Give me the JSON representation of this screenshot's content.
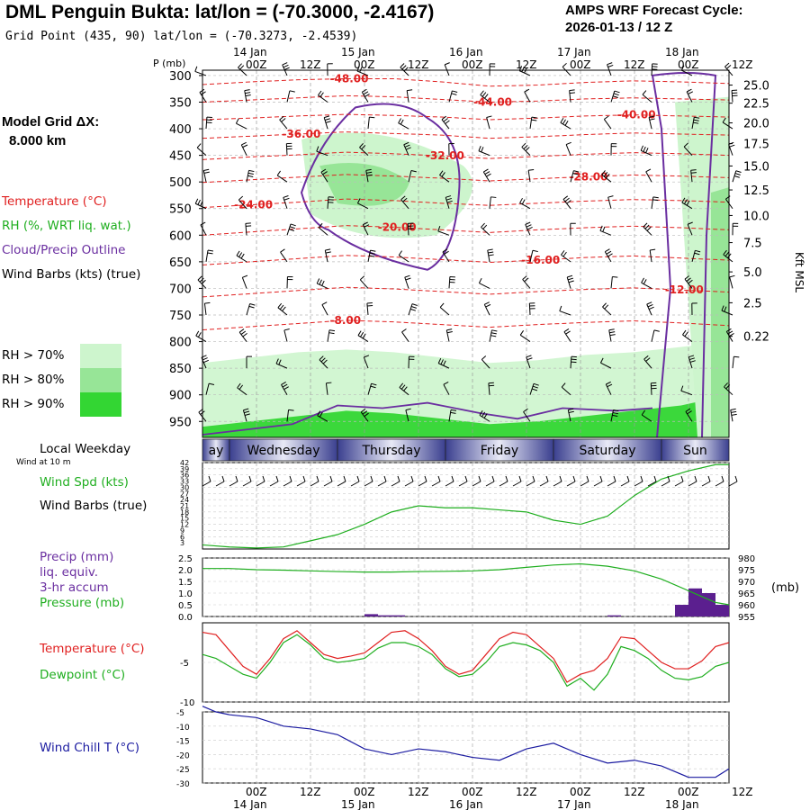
{
  "header": {
    "title": "DML Penguin Bukta:  lat/lon = (-70.3000, -2.4167)",
    "grid_point": "Grid Point (435, 90) lat/lon = (-70.3273, -2.4539)",
    "cycle_label": "AMPS WRF Forecast Cycle:",
    "cycle_value": "2026-01-13 / 12  Z"
  },
  "sidebar": {
    "model_grid_label": "Model Grid ΔX:",
    "model_grid_value": "8.000 km",
    "legend_temperature": "Temperature (°C)",
    "legend_rh": "RH (%, WRT liq. wat.)",
    "legend_cloud": "Cloud/Precip Outline",
    "legend_wind": "Wind Barbs (kts) (true)",
    "rh_levels": [
      {
        "label": "RH > 70%",
        "color": "#cdf5cd"
      },
      {
        "label": "RH > 80%",
        "color": "#97e597"
      },
      {
        "label": "RH > 90%",
        "color": "#33d633"
      }
    ],
    "local_weekday_label": "Local Weekday",
    "wind_10m_label": "Wind at 10 m",
    "wind_spd_label": "Wind Spd (kts)",
    "wind_barbs_label": "Wind Barbs (true)",
    "precip_label": "Precip (mm)",
    "liq_label": "liq. equiv.",
    "accum_label": "3-hr accum",
    "pressure_label": "Pressure (mb)",
    "temp_label": "Temperature (°C)",
    "dew_label": "Dewpoint (°C)",
    "chill_label": "Wind Chill T (°C)"
  },
  "colors": {
    "temperature": "#e02020",
    "rh": "#1fae1f",
    "cloud": "#6a2ea0",
    "pressure": "#1fae1f",
    "windchill": "#1a1aa0",
    "precip": "#5b1f8f"
  },
  "chart_data": [
    {
      "name": "time-height cross section",
      "type": "heatmap",
      "time_axis": {
        "units": "hours since 2026-01-13 12Z",
        "range": [
          0,
          117
        ],
        "ticks": [
          {
            "h": 12,
            "label": "00Z",
            "date": "14 Jan"
          },
          {
            "h": 24,
            "label": "12Z",
            "date": ""
          },
          {
            "h": 36,
            "label": "00Z",
            "date": "15 Jan"
          },
          {
            "h": 48,
            "label": "12Z",
            "date": ""
          },
          {
            "h": 60,
            "label": "00Z",
            "date": "16 Jan"
          },
          {
            "h": 72,
            "label": "12Z",
            "date": ""
          },
          {
            "h": 84,
            "label": "00Z",
            "date": "17 Jan"
          },
          {
            "h": 96,
            "label": "12Z",
            "date": ""
          },
          {
            "h": 108,
            "label": "00Z",
            "date": "18 Jan"
          },
          {
            "h": 120,
            "label": "12Z",
            "date": ""
          }
        ]
      },
      "p_axis_label": "P (mb)",
      "pressure_ticks": [
        300,
        350,
        400,
        450,
        500,
        550,
        600,
        650,
        700,
        750,
        800,
        850,
        900,
        950
      ],
      "ylim_mb": [
        980,
        290
      ],
      "height_axis_label": "Kft MSL",
      "height_ticks": [
        {
          "label": "25.0",
          "p": 318
        },
        {
          "label": "22.5",
          "p": 352
        },
        {
          "label": "20.0",
          "p": 389
        },
        {
          "label": "17.5",
          "p": 428
        },
        {
          "label": "15.0",
          "p": 470
        },
        {
          "label": "12.5",
          "p": 515
        },
        {
          "label": "10.0",
          "p": 563
        },
        {
          "label": "7.5",
          "p": 614
        },
        {
          "label": "5.0",
          "p": 669
        },
        {
          "label": "2.5",
          "p": 727
        },
        {
          "label": "0.22",
          "p": 790
        }
      ],
      "temperature_contours": [
        {
          "label": "-48.00",
          "values": [
            317,
            312,
            308,
            306,
            306,
            312,
            320,
            318,
            313,
            310,
            312,
            315
          ]
        },
        {
          "label": "-44.00",
          "values": [
            350,
            346,
            342,
            338,
            340,
            345,
            350,
            348,
            344,
            342,
            344,
            346
          ]
        },
        {
          "label": "-40.00",
          "values": [
            383,
            380,
            376,
            373,
            375,
            378,
            383,
            380,
            376,
            374,
            376,
            378
          ]
        },
        {
          "label": "-36.00",
          "values": [
            418,
            414,
            410,
            406,
            409,
            412,
            418,
            415,
            411,
            408,
            410,
            412
          ]
        },
        {
          "label": "-32.00",
          "values": [
            458,
            453,
            449,
            444,
            447,
            451,
            456,
            452,
            448,
            445,
            447,
            450
          ]
        },
        {
          "label": "-28.00",
          "values": [
            501,
            496,
            491,
            486,
            489,
            493,
            498,
            494,
            490,
            487,
            489,
            492
          ]
        },
        {
          "label": "-24.00",
          "values": [
            548,
            543,
            538,
            532,
            535,
            540,
            544,
            540,
            536,
            533,
            535,
            538
          ]
        },
        {
          "label": "-20.00",
          "values": [
            600,
            594,
            588,
            582,
            585,
            590,
            595,
            590,
            586,
            583,
            586,
            590
          ]
        },
        {
          "label": "-16.00",
          "values": [
            656,
            650,
            644,
            638,
            641,
            646,
            651,
            647,
            642,
            639,
            643,
            647
          ]
        },
        {
          "label": "-12.00",
          "values": [
            716,
            710,
            704,
            698,
            701,
            706,
            711,
            706,
            702,
            699,
            703,
            707
          ]
        },
        {
          "label": "-8.00",
          "values": [
            778,
            772,
            766,
            760,
            763,
            768,
            773,
            768,
            764,
            761,
            765,
            770
          ]
        }
      ],
      "rh_regions": [
        {
          "level": 70,
          "p_top": [
            840,
            830,
            820,
            815,
            820,
            830,
            840,
            835,
            825,
            820,
            810,
            800
          ],
          "note": "lower moist layer"
        },
        {
          "level": 90,
          "p_top": [
            960,
            950,
            940,
            930,
            935,
            945,
            955,
            950,
            940,
            930,
            920,
            900
          ],
          "note": "surface saturated layer"
        }
      ],
      "wind_barbs_kts": {
        "levels_mb": [
          300,
          350,
          400,
          450,
          500,
          550,
          600,
          650,
          700,
          750,
          800,
          850,
          900,
          950
        ],
        "times_h": [
          0,
          9,
          18,
          27,
          36,
          45,
          54,
          63,
          72,
          81,
          90,
          99,
          108,
          117
        ],
        "speed_range_kts": [
          5,
          30
        ]
      }
    },
    {
      "name": "wind speed",
      "type": "line",
      "x_hours": [
        0,
        6,
        12,
        18,
        24,
        30,
        36,
        42,
        48,
        54,
        60,
        66,
        72,
        78,
        84,
        90,
        96,
        102,
        108,
        114,
        117
      ],
      "y": [
        2,
        1,
        0.5,
        1,
        4,
        7,
        12,
        18,
        21,
        20,
        20,
        19,
        18,
        14,
        12,
        16,
        26,
        34,
        38,
        41,
        41
      ],
      "ylabel": "Wind Spd (kts)",
      "ylim": [
        0,
        42
      ],
      "yticks": [
        "42",
        "39",
        "36",
        "33",
        "30",
        "27",
        "24",
        "21",
        "18",
        "15",
        "12",
        "9",
        "6",
        "3"
      ]
    },
    {
      "name": "precip and pressure",
      "type": "bar",
      "precip_mm": [
        0,
        0,
        0,
        0,
        0,
        0,
        0,
        0,
        0,
        0,
        0,
        0,
        0.1,
        0.05,
        0.05,
        0,
        0,
        0,
        0,
        0,
        0,
        0,
        0,
        0,
        0,
        0,
        0,
        0,
        0,
        0,
        0.05,
        0,
        0,
        0,
        0,
        0.5,
        1.2,
        1.0,
        0.5
      ],
      "precip_ylim": [
        0,
        2.5
      ],
      "precip_yticks": [
        "2.5",
        "2.0",
        "1.5",
        "1.0",
        "0.5",
        "0.0"
      ],
      "pressure_x_hours": [
        0,
        6,
        12,
        18,
        24,
        30,
        36,
        42,
        48,
        54,
        60,
        66,
        72,
        78,
        84,
        90,
        96,
        102,
        108,
        114,
        117
      ],
      "pressure_mb": [
        975.5,
        975.5,
        975.0,
        974.8,
        974.5,
        974.2,
        974.0,
        974.0,
        974.2,
        974.3,
        974.5,
        975.0,
        976.0,
        977.0,
        977.5,
        976.5,
        974.5,
        971.0,
        966.0,
        961.0,
        960.0
      ],
      "pressure_ylim": [
        955,
        980
      ],
      "pressure_yticks": [
        "980",
        "975",
        "970",
        "965",
        "960",
        "955"
      ],
      "right_label": "(mb)"
    },
    {
      "name": "temperature and dewpoint",
      "type": "line",
      "x_hours": [
        0,
        3,
        6,
        9,
        12,
        15,
        18,
        21,
        24,
        27,
        30,
        33,
        36,
        39,
        42,
        45,
        48,
        51,
        54,
        57,
        60,
        63,
        66,
        69,
        72,
        75,
        78,
        81,
        84,
        87,
        90,
        93,
        96,
        99,
        102,
        105,
        108,
        111,
        114,
        117
      ],
      "temperature_c": [
        -1.2,
        -1.5,
        -3.5,
        -5.5,
        -6.5,
        -4.5,
        -2,
        -1,
        -2.5,
        -4,
        -4.5,
        -4.2,
        -3.8,
        -2.5,
        -1.2,
        -1.0,
        -2.0,
        -3.5,
        -5.5,
        -6.5,
        -6.0,
        -4.0,
        -2.0,
        -1.2,
        -1.5,
        -3.0,
        -4.5,
        -7.5,
        -6.5,
        -6.0,
        -4.5,
        -1.8,
        -2.0,
        -3.5,
        -5.0,
        -5.8,
        -5.8,
        -4.8,
        -3.0,
        -2.5
      ],
      "dewpoint_c": [
        -4.0,
        -4.5,
        -5.5,
        -6.5,
        -7.0,
        -5.0,
        -2.5,
        -1.5,
        -2.8,
        -4.5,
        -5.0,
        -4.8,
        -4.5,
        -3.2,
        -2.5,
        -2.5,
        -3.0,
        -4.0,
        -5.8,
        -6.8,
        -6.5,
        -5.0,
        -3.0,
        -2.5,
        -2.8,
        -3.5,
        -5.0,
        -8.0,
        -7.0,
        -8.5,
        -6.5,
        -3.0,
        -3.5,
        -4.5,
        -6.0,
        -7.0,
        -7.2,
        -6.8,
        -5.5,
        -5.0
      ],
      "yticks": [
        "-5",
        "-10"
      ],
      "ylim": [
        -10,
        0
      ]
    },
    {
      "name": "wind chill",
      "type": "line",
      "x_hours": [
        0,
        3,
        6,
        12,
        18,
        24,
        30,
        36,
        42,
        48,
        54,
        60,
        66,
        72,
        78,
        84,
        90,
        96,
        102,
        108,
        114,
        117
      ],
      "wind_chill_c": [
        -3,
        -5,
        -6,
        -7,
        -10,
        -11,
        -13,
        -18,
        -20,
        -18,
        -19,
        -21,
        -22,
        -18,
        -16,
        -20,
        -23,
        -22,
        -24,
        -28,
        -28,
        -25
      ],
      "ylim": [
        -30,
        -5
      ],
      "yticks": [
        "-5",
        "-10",
        "-15",
        "-20",
        "-25",
        "-30"
      ]
    }
  ],
  "weekdays": [
    {
      "label": "ay",
      "start_h": 0,
      "end_h": 6
    },
    {
      "label": "Wednesday",
      "start_h": 6,
      "end_h": 30
    },
    {
      "label": "Thursday",
      "start_h": 30,
      "end_h": 54
    },
    {
      "label": "Friday",
      "start_h": 54,
      "end_h": 78
    },
    {
      "label": "Saturday",
      "start_h": 78,
      "end_h": 102
    },
    {
      "label": "Sun",
      "start_h": 102,
      "end_h": 117
    }
  ]
}
